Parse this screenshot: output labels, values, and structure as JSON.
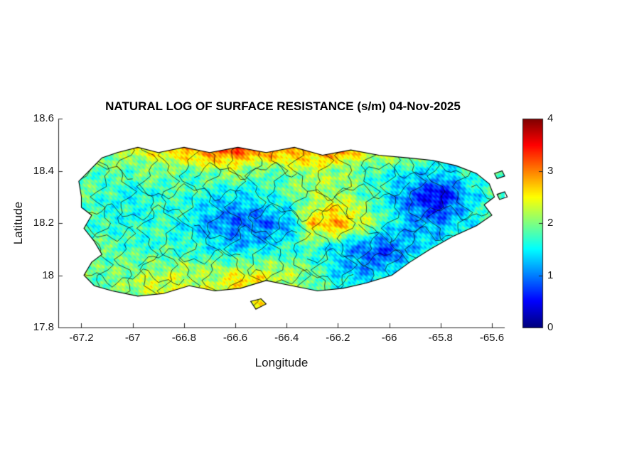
{
  "figure": {
    "title": "NATURAL LOG OF SURFACE RESISTANCE (s/m) 04-Nov-2025",
    "xlabel": "Longitude",
    "ylabel": "Latitude"
  },
  "axes": {
    "xlim": [
      -67.29,
      -65.55
    ],
    "ylim": [
      17.8,
      18.6
    ],
    "xticks": [
      {
        "value": -67.2,
        "label": "-67.2"
      },
      {
        "value": -67.0,
        "label": "-67"
      },
      {
        "value": -66.8,
        "label": "-66.8"
      },
      {
        "value": -66.6,
        "label": "-66.6"
      },
      {
        "value": -66.4,
        "label": "-66.4"
      },
      {
        "value": -66.2,
        "label": "-66.2"
      },
      {
        "value": -66.0,
        "label": "-66"
      },
      {
        "value": -65.8,
        "label": "-65.8"
      },
      {
        "value": -65.6,
        "label": "-65.6"
      }
    ],
    "yticks": [
      {
        "value": 17.8,
        "label": "17.8"
      },
      {
        "value": 18.0,
        "label": "18"
      },
      {
        "value": 18.2,
        "label": "18.2"
      },
      {
        "value": 18.4,
        "label": "18.4"
      },
      {
        "value": 18.6,
        "label": "18.6"
      }
    ]
  },
  "colorbar": {
    "min": 0,
    "max": 4,
    "colormap": "jet",
    "ticks": [
      {
        "value": 0,
        "label": "0"
      },
      {
        "value": 1,
        "label": "1"
      },
      {
        "value": 2,
        "label": "2"
      },
      {
        "value": 3,
        "label": "3"
      },
      {
        "value": 4,
        "label": "4"
      }
    ]
  },
  "chart_data": {
    "type": "heatmap",
    "title": "NATURAL LOG OF SURFACE RESISTANCE (s/m) 04-Nov-2025",
    "xlabel": "Longitude",
    "ylabel": "Latitude",
    "region_depicted": "Puerto Rico with municipal boundaries",
    "colormap": "jet",
    "value_range": [
      0,
      4
    ],
    "grid": {
      "lon": [
        -67.2,
        -67.1,
        -67.0,
        -66.9,
        -66.8,
        -66.7,
        -66.6,
        -66.5,
        -66.4,
        -66.3,
        -66.2,
        -66.1,
        -66.0,
        -65.9,
        -65.8,
        -65.7,
        -65.6
      ],
      "lat": [
        18.5,
        18.4,
        18.3,
        18.2,
        18.1,
        18.0,
        17.9
      ],
      "values": [
        [
          1.9,
          2.0,
          2.3,
          2.8,
          3.1,
          3.3,
          3.5,
          3.4,
          3.2,
          3.0,
          3.3,
          2.8,
          2.5,
          2.2,
          2.0,
          1.9,
          1.8
        ],
        [
          1.8,
          1.9,
          1.8,
          2.0,
          1.9,
          2.0,
          2.1,
          1.9,
          2.0,
          2.2,
          2.0,
          1.8,
          1.7,
          1.5,
          1.3,
          1.7,
          1.8
        ],
        [
          1.8,
          1.7,
          1.6,
          1.6,
          1.7,
          1.5,
          1.4,
          1.5,
          1.7,
          2.1,
          2.3,
          1.8,
          1.4,
          0.8,
          0.3,
          1.2,
          1.7
        ],
        [
          1.8,
          1.7,
          1.6,
          1.7,
          1.5,
          1.2,
          0.9,
          0.8,
          1.1,
          2.7,
          2.9,
          2.3,
          1.6,
          1.2,
          1.1,
          1.4,
          1.7
        ],
        [
          1.8,
          1.8,
          1.7,
          1.8,
          1.7,
          1.5,
          1.3,
          1.5,
          1.7,
          1.6,
          1.3,
          1.0,
          0.7,
          1.3,
          1.6,
          1.7,
          1.7
        ],
        [
          1.9,
          1.9,
          2.0,
          2.2,
          2.3,
          2.1,
          2.4,
          2.5,
          2.2,
          1.9,
          1.4,
          1.2,
          1.5,
          1.7,
          1.7,
          1.7,
          1.7
        ],
        [
          1.9,
          2.0,
          2.2,
          2.4,
          2.5,
          2.3,
          2.6,
          2.4,
          2.2,
          2.0,
          1.8,
          1.7,
          1.7,
          1.7,
          1.7,
          1.7,
          1.7
        ]
      ]
    },
    "island_outline": [
      [
        -67.2,
        18.3
      ],
      [
        -67.21,
        18.36
      ],
      [
        -67.16,
        18.41
      ],
      [
        -67.12,
        18.45
      ],
      [
        -67.06,
        18.47
      ],
      [
        -66.98,
        18.49
      ],
      [
        -66.9,
        18.47
      ],
      [
        -66.8,
        18.49
      ],
      [
        -66.7,
        18.47
      ],
      [
        -66.59,
        18.49
      ],
      [
        -66.48,
        18.47
      ],
      [
        -66.37,
        18.49
      ],
      [
        -66.26,
        18.46
      ],
      [
        -66.15,
        18.48
      ],
      [
        -66.04,
        18.46
      ],
      [
        -65.93,
        18.45
      ],
      [
        -65.83,
        18.44
      ],
      [
        -65.74,
        18.42
      ],
      [
        -65.66,
        18.39
      ],
      [
        -65.61,
        18.35
      ],
      [
        -65.59,
        18.3
      ],
      [
        -65.63,
        18.27
      ],
      [
        -65.6,
        18.23
      ],
      [
        -65.66,
        18.19
      ],
      [
        -65.75,
        18.15
      ],
      [
        -65.84,
        18.1
      ],
      [
        -65.92,
        18.05
      ],
      [
        -65.99,
        18.0
      ],
      [
        -66.09,
        17.97
      ],
      [
        -66.18,
        17.95
      ],
      [
        -66.28,
        17.94
      ],
      [
        -66.38,
        17.96
      ],
      [
        -66.48,
        17.98
      ],
      [
        -66.58,
        17.95
      ],
      [
        -66.68,
        17.94
      ],
      [
        -66.78,
        17.96
      ],
      [
        -66.88,
        17.93
      ],
      [
        -66.98,
        17.92
      ],
      [
        -67.08,
        17.94
      ],
      [
        -67.15,
        17.96
      ],
      [
        -67.19,
        18.0
      ],
      [
        -67.16,
        18.05
      ],
      [
        -67.12,
        18.08
      ],
      [
        -67.15,
        18.13
      ],
      [
        -67.19,
        18.18
      ],
      [
        -67.16,
        18.23
      ],
      [
        -67.2,
        18.26
      ]
    ],
    "islets": [
      [
        [
          -66.54,
          17.9
        ],
        [
          -66.5,
          17.91
        ],
        [
          -66.48,
          17.89
        ],
        [
          -66.52,
          17.87
        ]
      ],
      [
        [
          -65.59,
          18.39
        ],
        [
          -65.56,
          18.4
        ],
        [
          -65.55,
          18.38
        ],
        [
          -65.58,
          18.37
        ]
      ],
      [
        [
          -65.58,
          18.31
        ],
        [
          -65.55,
          18.32
        ],
        [
          -65.54,
          18.3
        ],
        [
          -65.57,
          18.29
        ]
      ]
    ]
  }
}
